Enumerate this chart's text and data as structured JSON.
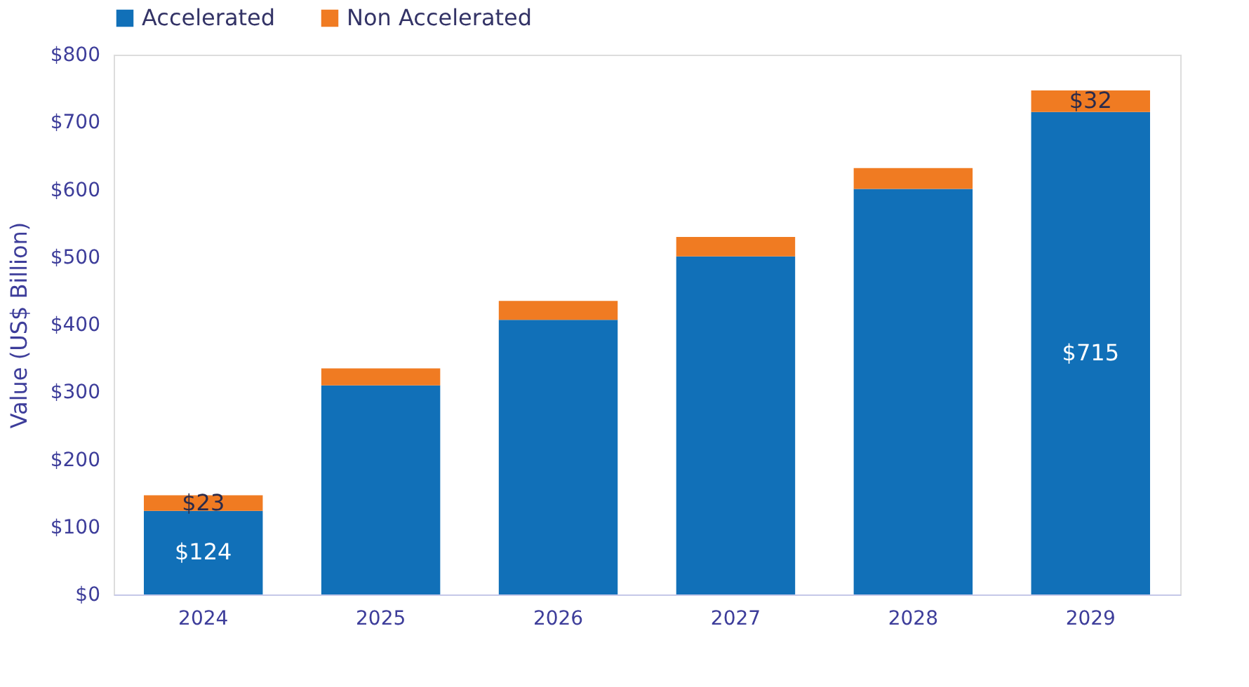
{
  "chart_data": {
    "type": "bar",
    "stacked": true,
    "ylabel": "Value  (US$ Billion)",
    "categories": [
      "2024",
      "2025",
      "2026",
      "2027",
      "2028",
      "2029"
    ],
    "series": [
      {
        "name": "Accelerated",
        "color": "#1170b8",
        "values": [
          124,
          310,
          407,
          501,
          601,
          715
        ],
        "value_labels": [
          "$124",
          null,
          null,
          null,
          null,
          "$715"
        ]
      },
      {
        "name": "Non Accelerated",
        "color": "#f07b22",
        "values": [
          23,
          25,
          28,
          29,
          31,
          32
        ],
        "value_labels": [
          "$23",
          null,
          null,
          null,
          null,
          "$32"
        ]
      }
    ],
    "ylim": [
      0,
      800
    ],
    "yticks": [
      {
        "value": 0,
        "label": "$0"
      },
      {
        "value": 100,
        "label": "$100"
      },
      {
        "value": 200,
        "label": "$200"
      },
      {
        "value": 300,
        "label": "$300"
      },
      {
        "value": 400,
        "label": "$400"
      },
      {
        "value": 500,
        "label": "$500"
      },
      {
        "value": 600,
        "label": "$600"
      },
      {
        "value": 700,
        "label": "$700"
      },
      {
        "value": 800,
        "label": "$800"
      }
    ],
    "grid": false,
    "legend": "top"
  }
}
